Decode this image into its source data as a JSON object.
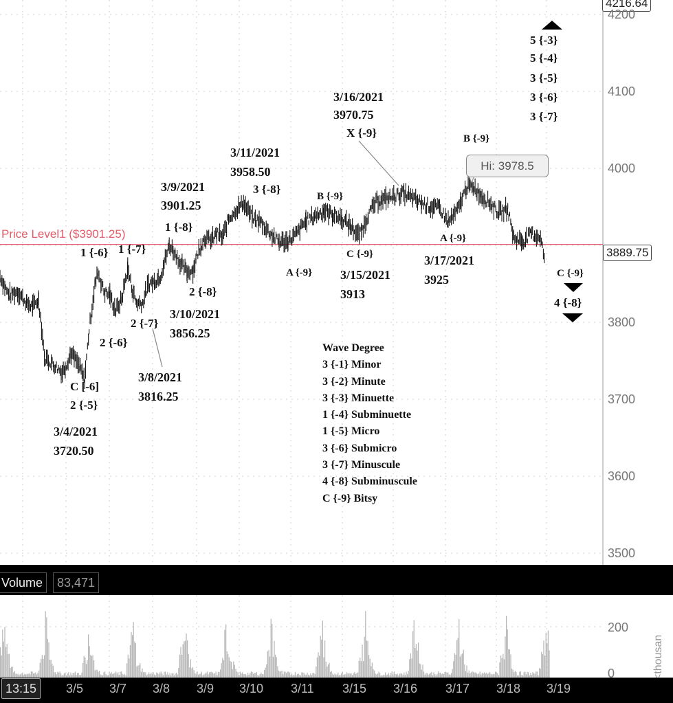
{
  "chart_data": {
    "type": "candlestick",
    "symbol_last_price": "3889.75",
    "top_price": "4216.64",
    "hi_label": "Hi: 3978.5",
    "price_level_label": "Price Level1 ($3901.25)",
    "price_level_value": 3901.25,
    "ylim": [
      3500,
      4216.64
    ],
    "y_ticks": [
      "4200",
      "4100",
      "4000",
      "3800",
      "3700",
      "3600",
      "3500"
    ],
    "x_ticks": [
      "3/5",
      "3/7",
      "3/8",
      "3/9",
      "3/10",
      "3/11",
      "3/15",
      "3/16",
      "3/17",
      "3/18",
      "3/19"
    ],
    "price_path": [
      [
        0,
        3860
      ],
      [
        0.3,
        3835
      ],
      [
        0.6,
        3840
      ],
      [
        0.9,
        3825
      ],
      [
        1.1,
        3820
      ],
      [
        1.3,
        3830
      ],
      [
        1.5,
        3755
      ],
      [
        1.8,
        3745
      ],
      [
        2.1,
        3735
      ],
      [
        2.4,
        3760
      ],
      [
        2.7,
        3740
      ],
      [
        2.85,
        3725
      ],
      [
        3.0,
        3790
      ],
      [
        3.2,
        3850
      ],
      [
        3.3,
        3865
      ],
      [
        3.5,
        3840
      ],
      [
        3.7,
        3835
      ],
      [
        3.9,
        3815
      ],
      [
        4.1,
        3830
      ],
      [
        4.3,
        3870
      ],
      [
        4.45,
        3843
      ],
      [
        4.6,
        3825
      ],
      [
        4.8,
        3825
      ],
      [
        5.0,
        3850
      ],
      [
        5.2,
        3853
      ],
      [
        5.4,
        3860
      ],
      [
        5.7,
        3900
      ],
      [
        5.9,
        3890
      ],
      [
        6.1,
        3875
      ],
      [
        6.3,
        3865
      ],
      [
        6.5,
        3868
      ],
      [
        6.7,
        3895
      ],
      [
        6.9,
        3910
      ],
      [
        7.1,
        3905
      ],
      [
        7.3,
        3915
      ],
      [
        7.5,
        3910
      ],
      [
        7.7,
        3935
      ],
      [
        7.9,
        3944
      ],
      [
        8.2,
        3955
      ],
      [
        8.5,
        3935
      ],
      [
        8.8,
        3930
      ],
      [
        9.1,
        3915
      ],
      [
        9.4,
        3905
      ],
      [
        9.7,
        3905
      ],
      [
        10.0,
        3915
      ],
      [
        10.3,
        3932
      ],
      [
        10.6,
        3938
      ],
      [
        10.9,
        3945
      ],
      [
        11.2,
        3940
      ],
      [
        11.5,
        3935
      ],
      [
        11.8,
        3925
      ],
      [
        12.1,
        3912
      ],
      [
        12.4,
        3940
      ],
      [
        12.7,
        3958
      ],
      [
        13.0,
        3960
      ],
      [
        13.3,
        3964
      ],
      [
        13.6,
        3968
      ],
      [
        13.9,
        3960
      ],
      [
        14.2,
        3955
      ],
      [
        14.5,
        3950
      ],
      [
        14.8,
        3948
      ],
      [
        15.1,
        3930
      ],
      [
        15.4,
        3945
      ],
      [
        15.7,
        3975
      ],
      [
        15.9,
        3978.5
      ],
      [
        16.2,
        3965
      ],
      [
        16.5,
        3955
      ],
      [
        16.8,
        3942
      ],
      [
        17.1,
        3948
      ],
      [
        17.3,
        3910
      ],
      [
        17.6,
        3905
      ],
      [
        17.9,
        3915
      ],
      [
        18.2,
        3910
      ],
      [
        18.35,
        3880
      ]
    ],
    "volume_label": "Volume",
    "volume_value": "83,471",
    "volume_ticks": [
      "200",
      "0"
    ],
    "volume_unit": "<thousan",
    "current_time": "13:15",
    "annotations": {
      "top_5_3": "5 {-3}",
      "top_5_4": "5 {-4}",
      "top_3_5": "3 {-5}",
      "top_3_6": "3 {-6}",
      "top_3_7": "3 {-7}",
      "d0316": "3/16/2021",
      "p0316": "3970.75",
      "x9": "X {-9}",
      "b9_top": "B {-9}",
      "d0311": "3/11/2021",
      "p0311": "3958.50",
      "w3_8": "3 {-8}",
      "d0309": "3/9/2021",
      "p0309": "3901.25",
      "w1_8": "1 {-8}",
      "b9_mid": "B {-9}",
      "w1_6": "1 {-6}",
      "w1_7": "1 {-7}",
      "a9_left": "A {-9}",
      "c9_mid": "C {-9}",
      "d0315": "3/15/2021",
      "p0315": "3913",
      "a9_right": "A {-9}",
      "d0317": "3/17/2021",
      "p0317": "3925",
      "c9_right": "C {-9}",
      "w4_8": "4 {-8}",
      "w2_8": "2 {-8}",
      "d0310": "3/10/2021",
      "p0310": "3856.25",
      "w2_7": "2 {-7}",
      "w2_6": "2 {-6}",
      "d0308": "3/8/2021",
      "p0308": "3816.25",
      "c6": "C [-6]",
      "w2_5": "2 {-5}",
      "d0304": "3/4/2021",
      "p0304": "3720.50"
    },
    "legend_title": "Wave Degree",
    "legend_items": [
      "3 {-1} Minor",
      "3 {-2} Minute",
      "3 {-3} Minuette",
      "1 {-4} Subminuette",
      "1 {-5} Micro",
      "3 {-6} Submicro",
      "3 {-7} Minuscule",
      "4 {-8} Subminuscule",
      "C {-9} Bitsy"
    ],
    "colors": {
      "price_level": "#e35b68",
      "bars": "#111111",
      "volume": "#b5b5b5",
      "grid": "#cfcfcf"
    }
  }
}
